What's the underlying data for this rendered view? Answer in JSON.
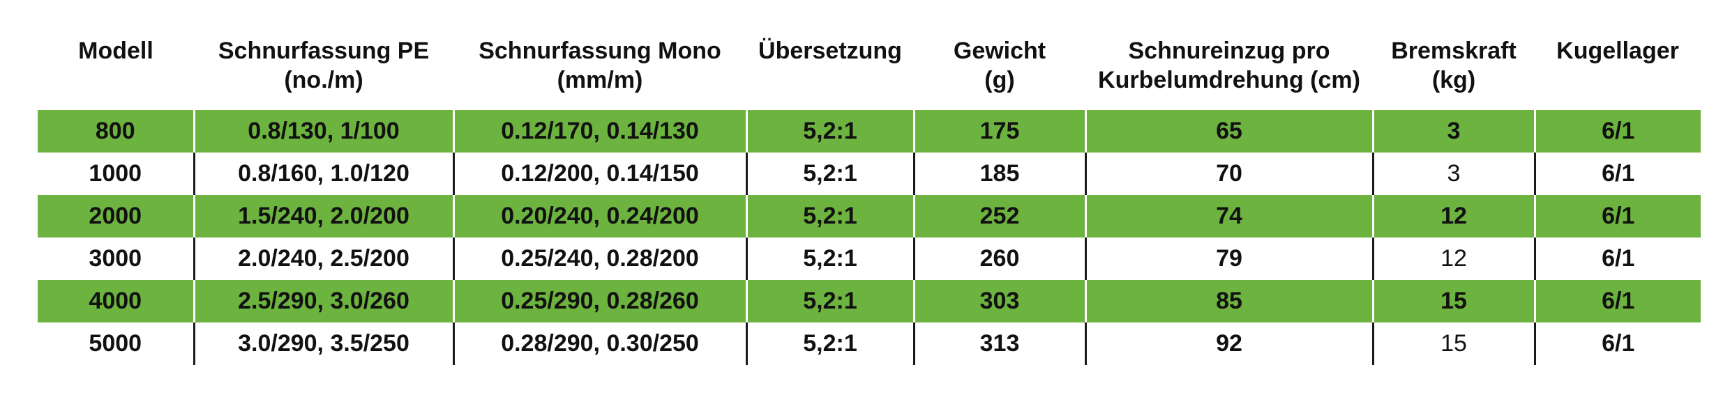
{
  "table": {
    "headers": [
      "Modell",
      "Schnurfassung PE\n(no./m)",
      "Schnurfassung Mono\n(mm/m)",
      "Übersetzung",
      "Gewicht\n(g)",
      "Schnureinzug pro\nKurbelumdrehung (cm)",
      "Bremskraft\n(kg)",
      "Kugellager"
    ],
    "rows": [
      [
        "800",
        "0.8/130, 1/100",
        "0.12/170, 0.14/130",
        "5,2:1",
        "175",
        "65",
        "3",
        "6/1"
      ],
      [
        "1000",
        "0.8/160, 1.0/120",
        "0.12/200, 0.14/150",
        "5,2:1",
        "185",
        "70",
        "3",
        "6/1"
      ],
      [
        "2000",
        "1.5/240, 2.0/200",
        "0.20/240, 0.24/200",
        "5,2:1",
        "252",
        "74",
        "12",
        "6/1"
      ],
      [
        "3000",
        "2.0/240, 2.5/200",
        "0.25/240, 0.28/200",
        "5,2:1",
        "260",
        "79",
        "12",
        "6/1"
      ],
      [
        "4000",
        "2.5/290, 3.0/260",
        "0.25/290, 0.28/260",
        "5,2:1",
        "303",
        "85",
        "15",
        "6/1"
      ],
      [
        "5000",
        "3.0/290, 3.5/250",
        "0.28/290, 0.30/250",
        "5,2:1",
        "313",
        "92",
        "15",
        "6/1"
      ]
    ]
  },
  "colors": {
    "row_highlight": "#6db33f",
    "row_plain": "#ffffff",
    "divider": "#1a1a1a"
  }
}
